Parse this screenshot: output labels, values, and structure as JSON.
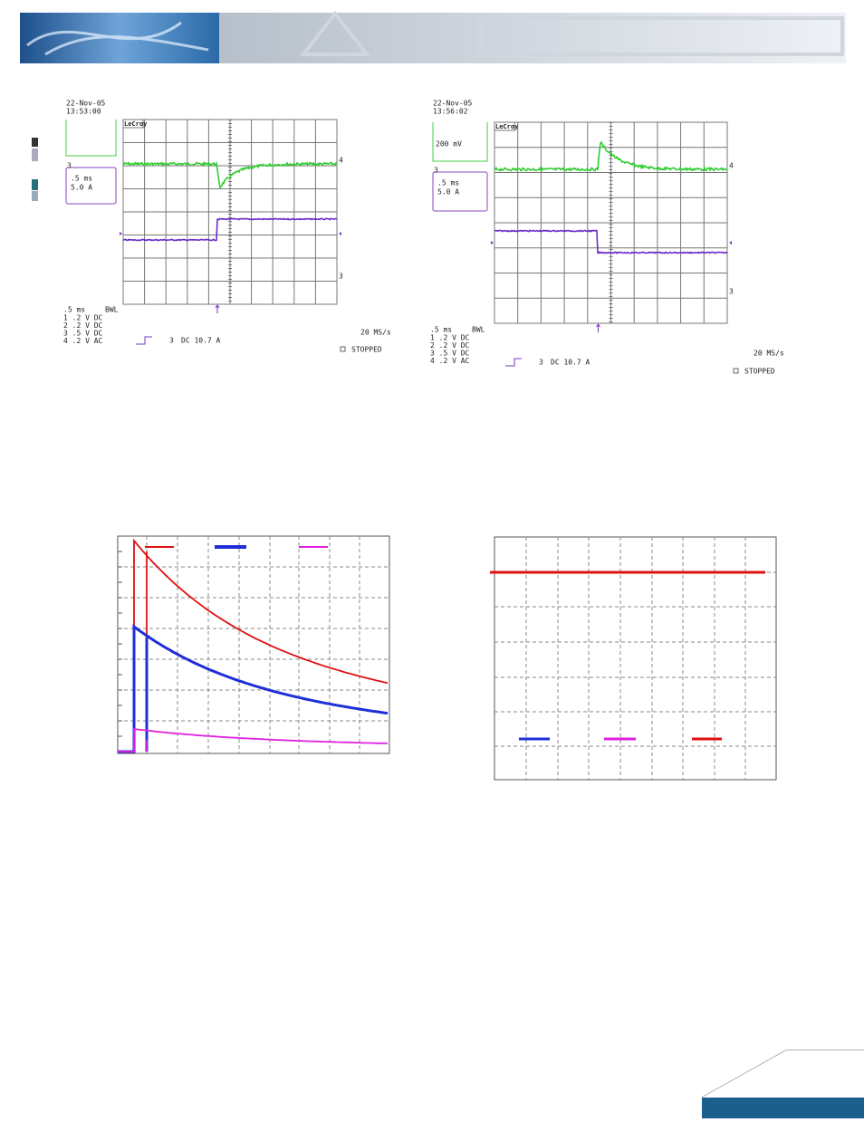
{
  "scope_left": {
    "date": "22-Nov-05",
    "time": "13:53:00",
    "brand": "LeCroy",
    "box_timebase": ".5 ms",
    "box_scale": "5.0 A",
    "box_channel": "3",
    "trace_green_marker": "4",
    "trace_purple_marker": "3",
    "timebase": ".5 ms",
    "bwl": "BWL",
    "channels": [
      "1  .2  V  DC",
      "2  .2  V  DC",
      "3  .5  V  DC",
      "4  .2  V  AC"
    ],
    "trigger_channel": "3",
    "trigger_setting": "DC 10.7 A",
    "sample_rate": "20 MS/s",
    "status": "STOPPED"
  },
  "scope_right": {
    "date": "22-Nov-05",
    "time": "13:56:02",
    "brand": "LeCroy",
    "box_volts": "200 mV",
    "box_timebase": ".5 ms",
    "box_scale": "5.0 A",
    "box_channel": "3",
    "trace_green_marker": "4",
    "trace_purple_marker": "3",
    "timebase": ".5 ms",
    "bwl": "BWL",
    "channels": [
      "1  .2  V  DC",
      "2  .2  V  DC",
      "3  .5  V  DC",
      "4  .2  V  AC"
    ],
    "trigger_channel": "3",
    "trigger_setting": "DC 10.7 A",
    "sample_rate": "20 MS/s",
    "status": "STOPPED"
  }
}
